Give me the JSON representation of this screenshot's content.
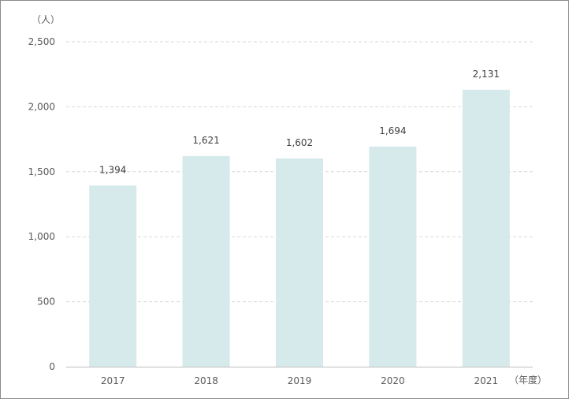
{
  "chart_data": {
    "type": "bar",
    "categories": [
      "2017",
      "2018",
      "2019",
      "2020",
      "2021"
    ],
    "values": [
      1394,
      1621,
      1602,
      1694,
      2131
    ],
    "data_labels": [
      "1,394",
      "1,621",
      "1,602",
      "1,694",
      "2,131"
    ],
    "y_ticks": [
      0,
      500,
      1000,
      1500,
      2000,
      2500
    ],
    "y_tick_labels": [
      "0",
      "500",
      "1,000",
      "1,500",
      "2,000",
      "2,500"
    ],
    "ylim": [
      0,
      2500
    ],
    "y_unit": "（人）",
    "x_unit": "（年度）",
    "grid": true,
    "bar_color": "#d6eaeb",
    "grid_color": "#d9d9d9",
    "axis_color": "#bfbfbf"
  }
}
